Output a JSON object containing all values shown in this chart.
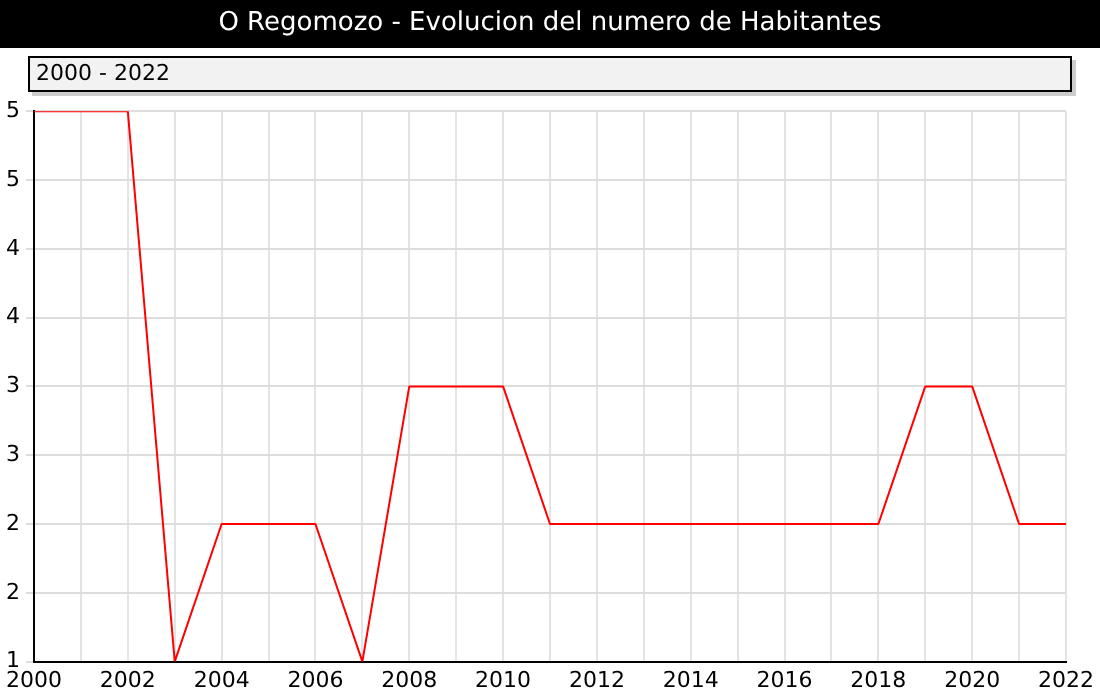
{
  "chart_data": {
    "type": "line",
    "title": "O Regomozo - Evolucion del numero de Habitantes",
    "annotations": [
      "2000 - 2022"
    ],
    "x": [
      2000,
      2001,
      2002,
      2003,
      2004,
      2005,
      2006,
      2007,
      2008,
      2009,
      2010,
      2011,
      2012,
      2013,
      2014,
      2015,
      2016,
      2017,
      2018,
      2019,
      2020,
      2021,
      2022
    ],
    "series": [
      {
        "color": "#ff0000",
        "values": [
          5,
          5,
          5,
          1,
          2,
          2,
          2,
          1,
          3,
          3,
          3,
          2,
          2,
          2,
          2,
          2,
          2,
          2,
          2,
          3,
          3,
          2,
          2
        ]
      }
    ],
    "xlim": [
      2000,
      2022
    ],
    "xticks": [
      2000,
      {
        "value": 2001,
        "label": null
      },
      2002,
      {
        "value": 2003,
        "label": null
      },
      2004,
      {
        "value": 2005,
        "label": null
      },
      2006,
      {
        "value": 2007,
        "label": null
      },
      2008,
      {
        "value": 2009,
        "label": null
      },
      2010,
      {
        "value": 2011,
        "label": null
      },
      2012,
      {
        "value": 2013,
        "label": null
      },
      2014,
      {
        "value": 2015,
        "label": null
      },
      2016,
      {
        "value": 2017,
        "label": null
      },
      2018,
      {
        "value": 2019,
        "label": null
      },
      2020,
      {
        "value": 2021,
        "label": null
      },
      2022
    ],
    "ylim": [
      1,
      5
    ],
    "yticks": [
      1,
      {
        "value": 1.5,
        "label": "2"
      },
      2,
      {
        "value": 2.5,
        "label": "3"
      },
      3,
      {
        "value": 3.5,
        "label": "4"
      },
      4,
      {
        "value": 4.5,
        "label": "5"
      },
      5
    ],
    "grid": true,
    "legend": false,
    "marker": "none",
    "line_style": "solid"
  }
}
